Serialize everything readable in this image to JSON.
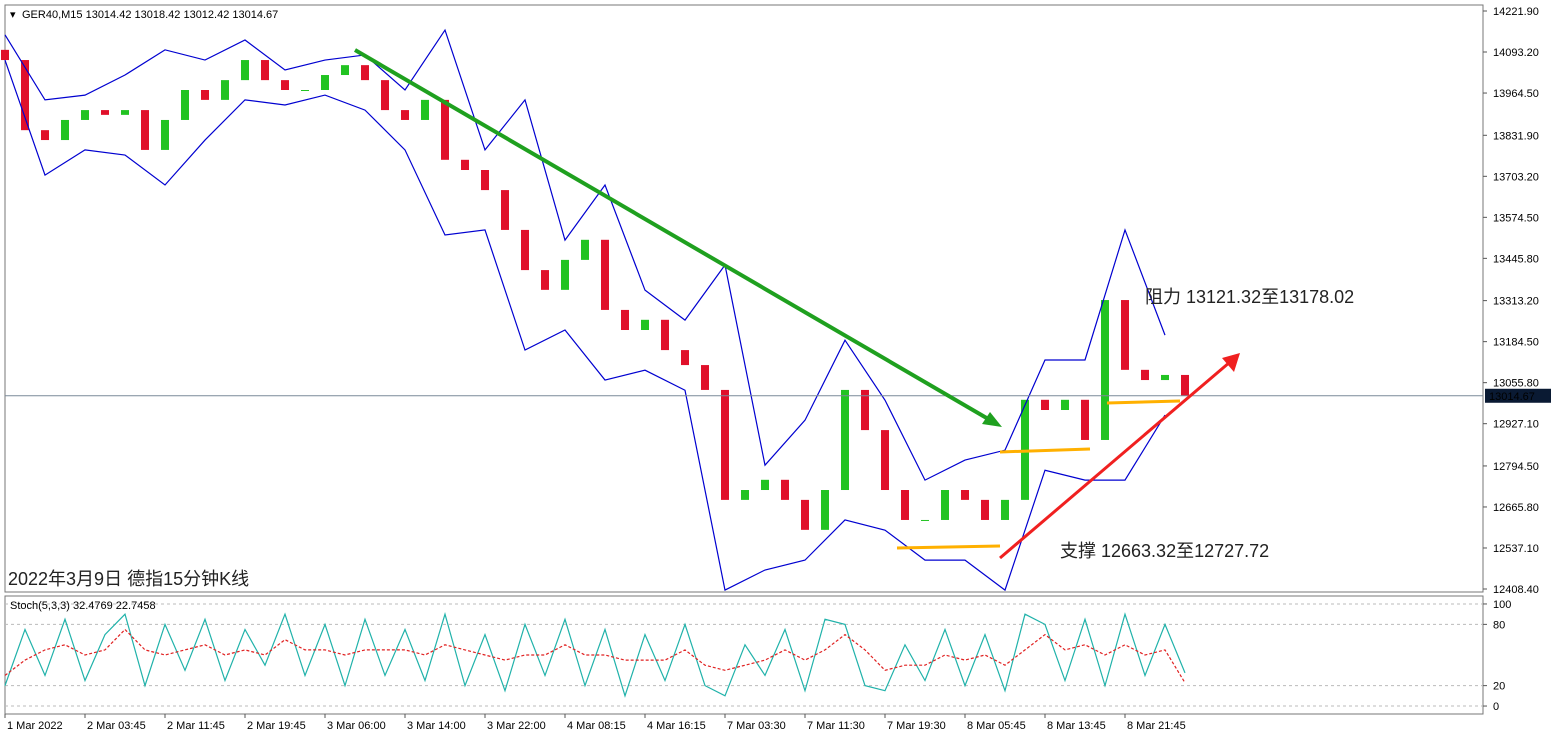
{
  "chart_data": [
    {
      "type": "candlestick",
      "symbol_line": "GER40,M15  13014.42 13018.42 13012.42 13014.67",
      "title": "2022年3月9日 德指15分钟K线",
      "annotations": [
        "阻力 13121.32至13178.02",
        "支撑 12663.32至12727.72"
      ],
      "last_price": 13014.67,
      "up_color": "#22c322",
      "down_color": "#e0102a",
      "xlim": [
        0,
        591.2
      ],
      "ylim": [
        12399.0,
        14240.7
      ],
      "yticks": [
        {
          "value": 14221.9,
          "label": "14221.90"
        },
        {
          "value": 14093.2,
          "label": "14093.20"
        },
        {
          "value": 13964.5,
          "label": "13964.50"
        },
        {
          "value": 13831.9,
          "label": "13831.90"
        },
        {
          "value": 13703.2,
          "label": "13703.20"
        },
        {
          "value": 13574.5,
          "label": "13574.50"
        },
        {
          "value": 13445.8,
          "label": "13445.80"
        },
        {
          "value": 13313.2,
          "label": "13313.20"
        },
        {
          "value": 13184.5,
          "label": "13184.50"
        },
        {
          "value": 13055.8,
          "label": "13055.80"
        },
        {
          "value": 12927.1,
          "label": "12927.10"
        },
        {
          "value": 12794.5,
          "label": "12794.50"
        },
        {
          "value": 12665.8,
          "label": "12665.80"
        },
        {
          "value": 12537.1,
          "label": "12537.10"
        },
        {
          "value": 12408.4,
          "label": "12408.40"
        }
      ],
      "x": [
        0,
        8,
        16,
        24,
        32,
        40,
        48,
        56,
        64,
        72,
        80,
        88,
        96,
        104,
        112,
        120,
        128,
        136,
        144,
        152,
        160,
        168,
        176,
        184,
        192,
        200,
        208,
        216,
        224,
        232,
        240,
        248,
        256,
        264,
        272,
        280,
        288,
        296,
        304,
        312,
        320,
        328,
        336,
        344,
        352,
        360,
        368,
        376,
        384,
        392,
        400,
        408,
        416,
        424,
        432,
        440,
        448,
        456,
        464,
        472
      ],
      "open": [
        14100,
        14068,
        13848,
        13817,
        13880,
        13911,
        13896,
        13911,
        13786,
        13880,
        13974,
        13943,
        14005,
        14068,
        14005,
        13974,
        13974,
        14021,
        14052,
        14005,
        13911,
        13880,
        13943,
        13755,
        13723,
        13660,
        13535,
        13409,
        13347,
        13441,
        13504,
        13284,
        13221,
        13253,
        13158,
        13111,
        13033,
        12688,
        12719,
        12751,
        12688,
        12594,
        12719,
        13033,
        12907,
        12719,
        12625,
        12625,
        12719,
        12688,
        12625,
        12688,
        13002,
        12970,
        13002,
        12876,
        13315,
        13096,
        13064,
        13080
      ],
      "close": [
        14068,
        13848,
        13817,
        13880,
        13911,
        13896,
        13911,
        13786,
        13880,
        13974,
        13943,
        14005,
        14068,
        14005,
        13974,
        13974,
        14021,
        14052,
        14005,
        13911,
        13880,
        13943,
        13755,
        13723,
        13660,
        13535,
        13409,
        13347,
        13441,
        13504,
        13284,
        13221,
        13253,
        13158,
        13111,
        13033,
        12688,
        12719,
        12751,
        12688,
        12594,
        12719,
        13033,
        12907,
        12719,
        12625,
        12625,
        12719,
        12688,
        12625,
        12688,
        13002,
        12970,
        13002,
        12876,
        13315,
        13096,
        13064,
        13080,
        13014.67
      ],
      "band_x": [
        0,
        16,
        32,
        48,
        64,
        80,
        96,
        112,
        128,
        144,
        160,
        176,
        192,
        208,
        224,
        240,
        256,
        272,
        288,
        304,
        320,
        336,
        352,
        368,
        384,
        400,
        416,
        432,
        448,
        464
      ],
      "bands": [
        {
          "color": "#0000d0",
          "values": [
            14147,
            13943,
            13958,
            14021,
            14100,
            14068,
            14131,
            14037,
            14068,
            14084,
            13974,
            14162,
            13786,
            13943,
            13503,
            13676,
            13346,
            13252,
            13425,
            12797,
            12938,
            13189,
            13001,
            12750,
            12813,
            12844,
            13127,
            13127,
            13535,
            13205
          ]
        },
        {
          "color": "#0000d0",
          "values": [
            14068,
            13707,
            13786,
            13770,
            13676,
            13817,
            13943,
            13927,
            13958,
            13911,
            13786,
            13519,
            13535,
            13158,
            13221,
            13064,
            13095,
            13032,
            12405,
            12468,
            12499,
            12625,
            12593,
            12499,
            12499,
            12405,
            12781,
            12750,
            12750,
            12954
          ]
        }
      ]
    },
    {
      "type": "line",
      "label": "Stoch(5,3,3) 32.4769 22.7458",
      "xlim": [
        0,
        591.2
      ],
      "ylim": [
        -7.8,
        107.8
      ],
      "yticks": [
        0,
        20,
        80,
        100
      ],
      "xticks": [
        {
          "value": 0,
          "label": "1 Mar 2022"
        },
        {
          "value": 32,
          "label": "2 Mar 03:45"
        },
        {
          "value": 64,
          "label": "2 Mar 11:45"
        },
        {
          "value": 96,
          "label": "2 Mar 19:45"
        },
        {
          "value": 128,
          "label": "3 Mar 06:00"
        },
        {
          "value": 160,
          "label": "3 Mar 14:00"
        },
        {
          "value": 192,
          "label": "3 Mar 22:00"
        },
        {
          "value": 224,
          "label": "4 Mar 08:15"
        },
        {
          "value": 256,
          "label": "4 Mar 16:15"
        },
        {
          "value": 288,
          "label": "7 Mar 03:30"
        },
        {
          "value": 320,
          "label": "7 Mar 11:30"
        },
        {
          "value": 352,
          "label": "7 Mar 19:30"
        },
        {
          "value": 384,
          "label": "8 Mar 05:45"
        },
        {
          "value": 416,
          "label": "8 Mar 13:45"
        },
        {
          "value": 448,
          "label": "8 Mar 21:45"
        }
      ],
      "x": [
        0,
        8,
        16,
        24,
        32,
        40,
        48,
        56,
        64,
        72,
        80,
        88,
        96,
        104,
        112,
        120,
        128,
        136,
        144,
        152,
        160,
        168,
        176,
        184,
        192,
        200,
        208,
        216,
        224,
        232,
        240,
        248,
        256,
        264,
        272,
        280,
        288,
        296,
        304,
        312,
        320,
        328,
        336,
        344,
        352,
        360,
        368,
        376,
        384,
        392,
        400,
        408,
        416,
        424,
        432,
        440,
        448,
        456,
        464,
        472
      ],
      "series": [
        {
          "color": "#20b2aa",
          "values": [
            20,
            75,
            30,
            85,
            25,
            70,
            90,
            20,
            80,
            35,
            85,
            25,
            75,
            40,
            90,
            30,
            80,
            20,
            85,
            30,
            75,
            25,
            90,
            20,
            70,
            15,
            80,
            30,
            85,
            20,
            75,
            10,
            70,
            25,
            80,
            20,
            10,
            60,
            30,
            75,
            15,
            85,
            80,
            20,
            15,
            60,
            25,
            75,
            20,
            70,
            15,
            90,
            80,
            25,
            85,
            20,
            90,
            30,
            80,
            32.4769
          ]
        },
        {
          "color": "#e02020",
          "dashed": true,
          "values": [
            30,
            45,
            55,
            60,
            50,
            55,
            75,
            55,
            50,
            55,
            60,
            50,
            55,
            50,
            65,
            55,
            55,
            50,
            55,
            55,
            55,
            50,
            60,
            55,
            50,
            45,
            50,
            50,
            60,
            50,
            50,
            45,
            45,
            45,
            55,
            40,
            35,
            40,
            45,
            55,
            45,
            55,
            70,
            55,
            35,
            40,
            40,
            50,
            45,
            50,
            40,
            55,
            70,
            55,
            60,
            50,
            60,
            50,
            55,
            22.7458
          ]
        }
      ]
    }
  ]
}
